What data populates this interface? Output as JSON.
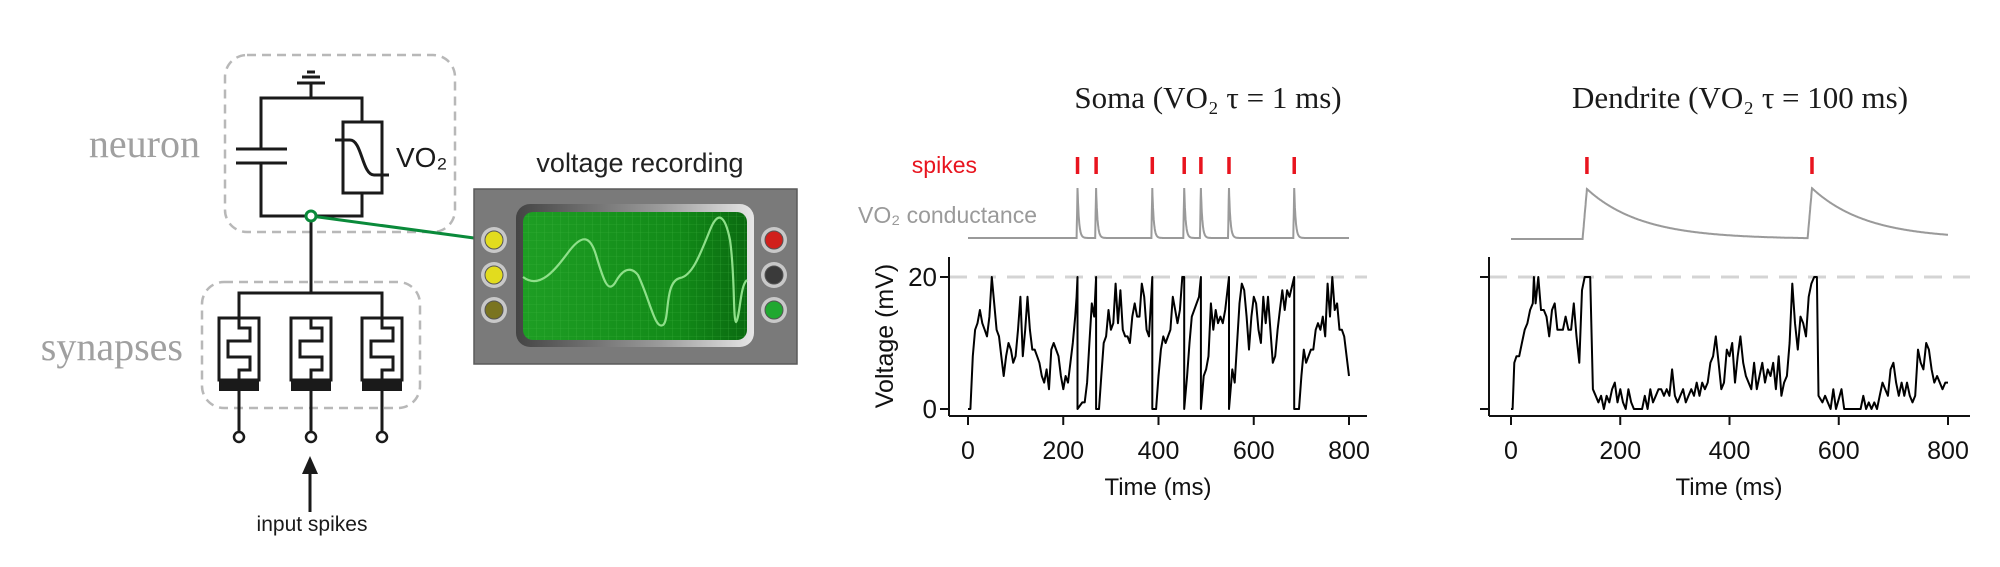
{
  "diagram": {
    "neuron_label": "neuron",
    "synapses_label": "synapses",
    "vo2_label": "VO₂",
    "recording_label": "voltage recording",
    "input_label": "input spikes",
    "colors": {
      "probe": "#0a8a3a",
      "group_box": "#b8b8b8",
      "group_label": "#a0a0a0",
      "scope_screen": "#1a9a22",
      "scope_trace": "#8fe08a"
    }
  },
  "chart_data": [
    {
      "type": "line",
      "title": "Soma (VO₂ τ = 1 ms)",
      "xlabel": "Time (ms)",
      "ylabel": "Voltage (mV)",
      "xlim": [
        0,
        800
      ],
      "ylim": [
        0,
        20
      ],
      "xticks": [
        0,
        200,
        400,
        600,
        800
      ],
      "yticks": [
        0,
        20
      ],
      "show_ytick_labels": true,
      "threshold_mV": 20,
      "spike_label": "spikes",
      "conductance_label": "VO₂ conductance",
      "vo2_tau_ms": 1,
      "spike_times": [
        230,
        269,
        387,
        454,
        489,
        548,
        685
      ],
      "voltage": [
        [
          0,
          0
        ],
        [
          5,
          0
        ],
        [
          10,
          8
        ],
        [
          15,
          12
        ],
        [
          20,
          13
        ],
        [
          25,
          15
        ],
        [
          30,
          13
        ],
        [
          35,
          12
        ],
        [
          40,
          11
        ],
        [
          45,
          14
        ],
        [
          50,
          20
        ],
        [
          55,
          16
        ],
        [
          60,
          12
        ],
        [
          65,
          11
        ],
        [
          70,
          8
        ],
        [
          75,
          5
        ],
        [
          80,
          8
        ],
        [
          85,
          10
        ],
        [
          90,
          9
        ],
        [
          95,
          7
        ],
        [
          100,
          8
        ],
        [
          105,
          12
        ],
        [
          110,
          17
        ],
        [
          115,
          8
        ],
        [
          120,
          12
        ],
        [
          125,
          17
        ],
        [
          130,
          12
        ],
        [
          135,
          9
        ],
        [
          140,
          9
        ],
        [
          145,
          8
        ],
        [
          150,
          7
        ],
        [
          155,
          5
        ],
        [
          160,
          4
        ],
        [
          165,
          6
        ],
        [
          170,
          3
        ],
        [
          175,
          9
        ],
        [
          180,
          10
        ],
        [
          185,
          9
        ],
        [
          190,
          8
        ],
        [
          195,
          5
        ],
        [
          200,
          3
        ],
        [
          205,
          5
        ],
        [
          210,
          4
        ],
        [
          215,
          7
        ],
        [
          220,
          10
        ],
        [
          225,
          14
        ],
        [
          228,
          17
        ],
        [
          230,
          20
        ],
        [
          230,
          0
        ],
        [
          240,
          1
        ],
        [
          245,
          1
        ],
        [
          250,
          4
        ],
        [
          255,
          10
        ],
        [
          260,
          16
        ],
        [
          265,
          14
        ],
        [
          269,
          20
        ],
        [
          269,
          0
        ],
        [
          275,
          0
        ],
        [
          280,
          5
        ],
        [
          285,
          10
        ],
        [
          290,
          11
        ],
        [
          295,
          15
        ],
        [
          300,
          12
        ],
        [
          305,
          13
        ],
        [
          310,
          19
        ],
        [
          315,
          13
        ],
        [
          320,
          18
        ],
        [
          325,
          12
        ],
        [
          330,
          11
        ],
        [
          335,
          11
        ],
        [
          340,
          10
        ],
        [
          345,
          14
        ],
        [
          350,
          16
        ],
        [
          355,
          14
        ],
        [
          360,
          14
        ],
        [
          365,
          19
        ],
        [
          370,
          17
        ],
        [
          375,
          12
        ],
        [
          380,
          11
        ],
        [
          387,
          20
        ],
        [
          387,
          0
        ],
        [
          395,
          0
        ],
        [
          400,
          5
        ],
        [
          405,
          9
        ],
        [
          410,
          11
        ],
        [
          415,
          10
        ],
        [
          420,
          11
        ],
        [
          425,
          12
        ],
        [
          430,
          17
        ],
        [
          435,
          15
        ],
        [
          440,
          13
        ],
        [
          445,
          15
        ],
        [
          450,
          20
        ],
        [
          454,
          20
        ],
        [
          454,
          0
        ],
        [
          460,
          5
        ],
        [
          465,
          10
        ],
        [
          470,
          14
        ],
        [
          475,
          15
        ],
        [
          480,
          16
        ],
        [
          485,
          17
        ],
        [
          489,
          20
        ],
        [
          489,
          0
        ],
        [
          495,
          5
        ],
        [
          500,
          6
        ],
        [
          505,
          8
        ],
        [
          510,
          16
        ],
        [
          515,
          12
        ],
        [
          520,
          15
        ],
        [
          525,
          13
        ],
        [
          530,
          14
        ],
        [
          535,
          13
        ],
        [
          540,
          15
        ],
        [
          548,
          20
        ],
        [
          548,
          0
        ],
        [
          555,
          6
        ],
        [
          560,
          4
        ],
        [
          565,
          10
        ],
        [
          570,
          16
        ],
        [
          575,
          19
        ],
        [
          580,
          18
        ],
        [
          585,
          14
        ],
        [
          590,
          9
        ],
        [
          595,
          14
        ],
        [
          600,
          17
        ],
        [
          605,
          16
        ],
        [
          610,
          12
        ],
        [
          615,
          10
        ],
        [
          620,
          17
        ],
        [
          625,
          13
        ],
        [
          630,
          17
        ],
        [
          635,
          12
        ],
        [
          640,
          7
        ],
        [
          645,
          8
        ],
        [
          650,
          12
        ],
        [
          655,
          15
        ],
        [
          660,
          18
        ],
        [
          665,
          15
        ],
        [
          670,
          18
        ],
        [
          675,
          17
        ],
        [
          685,
          20
        ],
        [
          685,
          0
        ],
        [
          695,
          0
        ],
        [
          700,
          5
        ],
        [
          705,
          9
        ],
        [
          710,
          7
        ],
        [
          715,
          8
        ],
        [
          720,
          9
        ],
        [
          725,
          9
        ],
        [
          730,
          12
        ],
        [
          735,
          13
        ],
        [
          740,
          12
        ],
        [
          745,
          14
        ],
        [
          750,
          11
        ],
        [
          755,
          19
        ],
        [
          760,
          14
        ],
        [
          765,
          20
        ],
        [
          770,
          15
        ],
        [
          775,
          16
        ],
        [
          780,
          12
        ],
        [
          785,
          12
        ],
        [
          790,
          11
        ],
        [
          795,
          8
        ],
        [
          800,
          5
        ]
      ]
    },
    {
      "type": "line",
      "title": "Dendrite (VO₂ τ = 100 ms)",
      "xlabel": "Time (ms)",
      "ylabel": "",
      "xlim": [
        0,
        800
      ],
      "ylim": [
        0,
        20
      ],
      "xticks": [
        0,
        200,
        400,
        600,
        800
      ],
      "yticks": [
        0,
        20
      ],
      "show_ytick_labels": false,
      "threshold_mV": 20,
      "vo2_tau_ms": 100,
      "spike_times": [
        139,
        551
      ],
      "voltage": [
        [
          0,
          0
        ],
        [
          3,
          0
        ],
        [
          6,
          7
        ],
        [
          10,
          8
        ],
        [
          15,
          8
        ],
        [
          20,
          10
        ],
        [
          25,
          12
        ],
        [
          30,
          13
        ],
        [
          35,
          15
        ],
        [
          40,
          16
        ],
        [
          42,
          20
        ],
        [
          45,
          16
        ],
        [
          50,
          20
        ],
        [
          55,
          15
        ],
        [
          60,
          15
        ],
        [
          65,
          14
        ],
        [
          70,
          11
        ],
        [
          75,
          15
        ],
        [
          80,
          16
        ],
        [
          85,
          12
        ],
        [
          90,
          12
        ],
        [
          95,
          12
        ],
        [
          100,
          14
        ],
        [
          105,
          12
        ],
        [
          110,
          12
        ],
        [
          115,
          16
        ],
        [
          120,
          11
        ],
        [
          125,
          7
        ],
        [
          130,
          18
        ],
        [
          135,
          20
        ],
        [
          145,
          20
        ],
        [
          150,
          3
        ],
        [
          155,
          2
        ],
        [
          160,
          1
        ],
        [
          165,
          2
        ],
        [
          170,
          0
        ],
        [
          175,
          2
        ],
        [
          180,
          1
        ],
        [
          185,
          3
        ],
        [
          190,
          4
        ],
        [
          195,
          1
        ],
        [
          200,
          3
        ],
        [
          205,
          1
        ],
        [
          210,
          0
        ],
        [
          215,
          3
        ],
        [
          220,
          1
        ],
        [
          225,
          0
        ],
        [
          240,
          0
        ],
        [
          245,
          2
        ],
        [
          250,
          0
        ],
        [
          255,
          3
        ],
        [
          260,
          1
        ],
        [
          265,
          2
        ],
        [
          270,
          3
        ],
        [
          275,
          3
        ],
        [
          280,
          2
        ],
        [
          285,
          3
        ],
        [
          290,
          2
        ],
        [
          295,
          6
        ],
        [
          300,
          2
        ],
        [
          305,
          1
        ],
        [
          310,
          2
        ],
        [
          315,
          3
        ],
        [
          320,
          1
        ],
        [
          325,
          2
        ],
        [
          330,
          3
        ],
        [
          335,
          2
        ],
        [
          340,
          4
        ],
        [
          345,
          2
        ],
        [
          350,
          4
        ],
        [
          355,
          3
        ],
        [
          360,
          4
        ],
        [
          365,
          7
        ],
        [
          370,
          8
        ],
        [
          375,
          11
        ],
        [
          380,
          7
        ],
        [
          385,
          3
        ],
        [
          390,
          4
        ],
        [
          395,
          9
        ],
        [
          400,
          8
        ],
        [
          405,
          10
        ],
        [
          410,
          4
        ],
        [
          415,
          8
        ],
        [
          420,
          11
        ],
        [
          425,
          7
        ],
        [
          430,
          5
        ],
        [
          435,
          4
        ],
        [
          440,
          3
        ],
        [
          445,
          7
        ],
        [
          450,
          3
        ],
        [
          455,
          5
        ],
        [
          460,
          7
        ],
        [
          465,
          4
        ],
        [
          470,
          6
        ],
        [
          475,
          5
        ],
        [
          480,
          7
        ],
        [
          485,
          3
        ],
        [
          490,
          8
        ],
        [
          495,
          2
        ],
        [
          500,
          4
        ],
        [
          505,
          5
        ],
        [
          510,
          10
        ],
        [
          515,
          19
        ],
        [
          520,
          13
        ],
        [
          525,
          9
        ],
        [
          530,
          14
        ],
        [
          535,
          13
        ],
        [
          540,
          11
        ],
        [
          545,
          17
        ],
        [
          550,
          19
        ],
        [
          555,
          20
        ],
        [
          560,
          20
        ],
        [
          563,
          2
        ],
        [
          570,
          1
        ],
        [
          575,
          2
        ],
        [
          580,
          1
        ],
        [
          585,
          0
        ],
        [
          590,
          3
        ],
        [
          595,
          0
        ],
        [
          605,
          3
        ],
        [
          610,
          0
        ],
        [
          640,
          0
        ],
        [
          645,
          2
        ],
        [
          650,
          0
        ],
        [
          655,
          1
        ],
        [
          660,
          0
        ],
        [
          665,
          1
        ],
        [
          670,
          0
        ],
        [
          675,
          2
        ],
        [
          680,
          4
        ],
        [
          685,
          3
        ],
        [
          690,
          2
        ],
        [
          695,
          6
        ],
        [
          700,
          7
        ],
        [
          705,
          4
        ],
        [
          710,
          2
        ],
        [
          715,
          4
        ],
        [
          720,
          2
        ],
        [
          725,
          4
        ],
        [
          730,
          2
        ],
        [
          735,
          1
        ],
        [
          740,
          2
        ],
        [
          745,
          9
        ],
        [
          750,
          7
        ],
        [
          755,
          6
        ],
        [
          760,
          10
        ],
        [
          765,
          9
        ],
        [
          770,
          6
        ],
        [
          775,
          4
        ],
        [
          780,
          5
        ],
        [
          785,
          4
        ],
        [
          790,
          3
        ],
        [
          795,
          4
        ],
        [
          800,
          4
        ]
      ]
    }
  ]
}
